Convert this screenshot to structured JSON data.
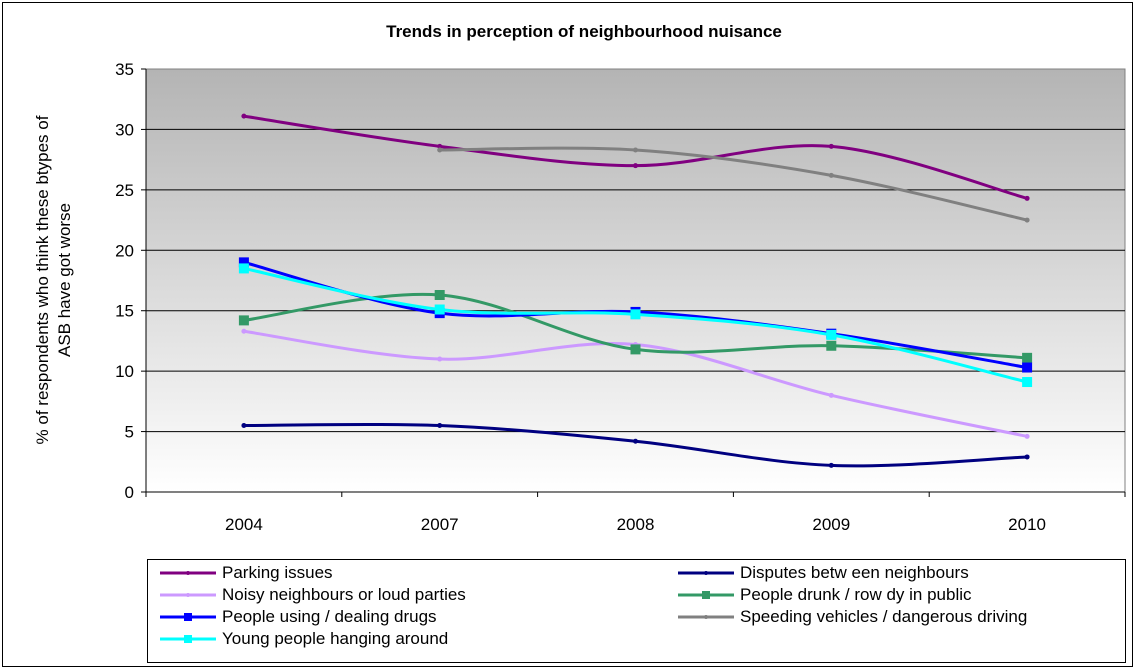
{
  "chart_data": {
    "type": "line",
    "title": "Trends in perception of neighbourhood nuisance",
    "xlabel": "",
    "ylabel": "% of respondents who think these btypes of ASB have got worse",
    "ylabel_lines": [
      "% of respondents who think these btypes of",
      "ASB have got worse"
    ],
    "categories": [
      "2004",
      "2007",
      "2008",
      "2009",
      "2010"
    ],
    "ylim": [
      0,
      35
    ],
    "yticks": [
      "0",
      "5",
      "10",
      "15",
      "20",
      "25",
      "30",
      "35"
    ],
    "grid": true,
    "legend_position": "bottom",
    "series": [
      {
        "name": "Parking issues",
        "color": "#800080",
        "marker": "small-diamond",
        "values": [
          31.1,
          28.6,
          27.0,
          28.6,
          24.3
        ]
      },
      {
        "name": "Disputes betw een neighbours",
        "color": "#000080",
        "marker": "small-diamond",
        "values": [
          5.5,
          5.5,
          4.2,
          2.2,
          2.9
        ]
      },
      {
        "name": "Noisy neighbours or loud parties",
        "color": "#CC99FF",
        "marker": "small-diamond",
        "values": [
          13.3,
          11.0,
          12.2,
          8.0,
          4.6
        ]
      },
      {
        "name": "People drunk / row dy in public",
        "color": "#339966",
        "marker": "square",
        "values": [
          14.2,
          16.3,
          11.8,
          12.1,
          11.1
        ]
      },
      {
        "name": "People using / dealing drugs",
        "color": "#0000FF",
        "marker": "square",
        "values": [
          19.0,
          14.8,
          14.9,
          13.1,
          10.3
        ]
      },
      {
        "name": "Speeding vehicles / dangerous driving",
        "color": "#808080",
        "marker": "small-diamond",
        "values": [
          null,
          28.3,
          28.3,
          26.2,
          22.5
        ]
      },
      {
        "name": "Young people hanging around",
        "color": "#00FFFF",
        "marker": "square",
        "values": [
          18.5,
          15.1,
          14.7,
          13.0,
          9.1
        ]
      }
    ]
  }
}
